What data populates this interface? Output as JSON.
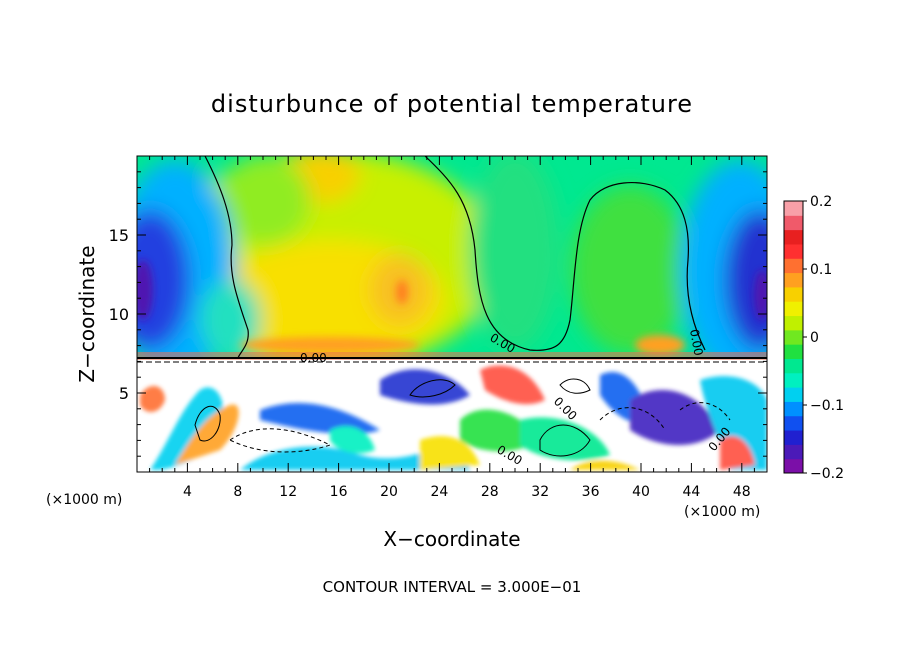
{
  "chart_data": {
    "type": "heatmap",
    "title": "disturbunce of potential temperature",
    "xlabel": "X−coordinate",
    "ylabel": "Z−coordinate",
    "x_unit": "(×1000 m)",
    "x_unit_right": "(×1000 m)",
    "xlim": [
      0,
      50
    ],
    "ylim": [
      0,
      20
    ],
    "x_ticks": [
      4,
      8,
      12,
      16,
      20,
      24,
      28,
      32,
      36,
      40,
      44,
      48
    ],
    "y_ticks": [
      5,
      10,
      15
    ],
    "colorbar": {
      "min": -0.2,
      "max": 0.2,
      "tick_values": [
        0.2,
        0.1,
        0,
        -0.1,
        -0.2
      ],
      "tick_labels": [
        "0.2",
        "0.1",
        "0",
        "−0.1",
        "−0.2"
      ],
      "colors": [
        "#7b0fa8",
        "#4b1ab8",
        "#2020d0",
        "#1050f0",
        "#0090ff",
        "#00d0f0",
        "#00f0c0",
        "#00e890",
        "#20e040",
        "#70e820",
        "#c0f000",
        "#f0f000",
        "#f8d000",
        "#ffa020",
        "#ff7030",
        "#ff3030",
        "#e82020",
        "#f05a6a",
        "#f8a0a8"
      ]
    },
    "contour_labels": [
      "0.00",
      "0.00",
      "0.00",
      "0.00",
      "0.00",
      "0.00"
    ],
    "note": "CONTOUR INTERVAL = 3.000E−01"
  }
}
